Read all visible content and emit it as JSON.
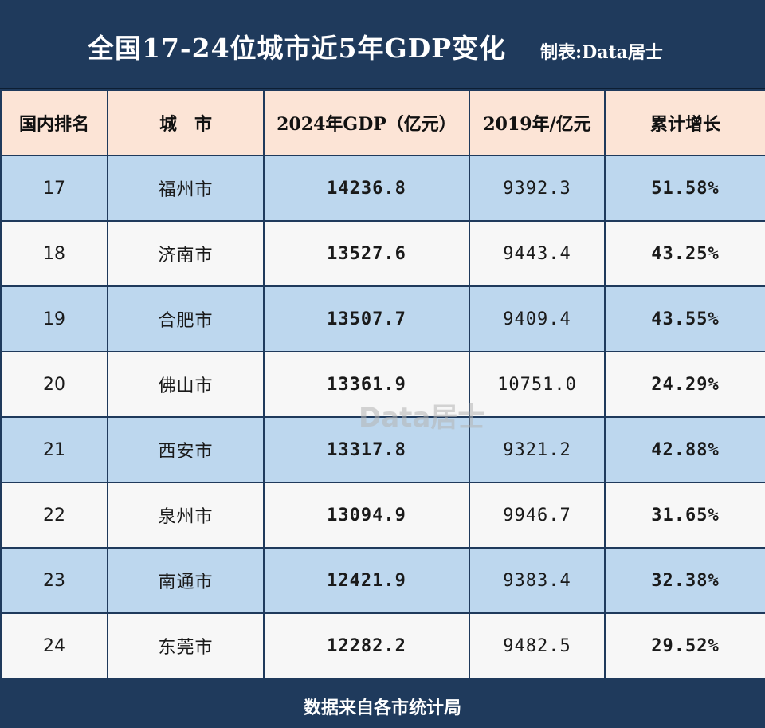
{
  "header": {
    "title": "全国17-24位城市近5年GDP变化",
    "credit": "制表:Data居士"
  },
  "table": {
    "columns": [
      "国内排名",
      "城　市",
      "2024年GDP（亿元）",
      "2019年/亿元",
      "累计增长"
    ],
    "rows": [
      {
        "rank": "17",
        "city": "福州市",
        "gdp2024": "14236.8",
        "gdp2019": "9392.3",
        "growth": "51.58%"
      },
      {
        "rank": "18",
        "city": "济南市",
        "gdp2024": "13527.6",
        "gdp2019": "9443.4",
        "growth": "43.25%"
      },
      {
        "rank": "19",
        "city": "合肥市",
        "gdp2024": "13507.7",
        "gdp2019": "9409.4",
        "growth": "43.55%"
      },
      {
        "rank": "20",
        "city": "佛山市",
        "gdp2024": "13361.9",
        "gdp2019": "10751.0",
        "growth": "24.29%"
      },
      {
        "rank": "21",
        "city": "西安市",
        "gdp2024": "13317.8",
        "gdp2019": "9321.2",
        "growth": "42.88%"
      },
      {
        "rank": "22",
        "city": "泉州市",
        "gdp2024": "13094.9",
        "gdp2019": "9946.7",
        "growth": "31.65%"
      },
      {
        "rank": "23",
        "city": "南通市",
        "gdp2024": "12421.9",
        "gdp2019": "9383.4",
        "growth": "32.38%"
      },
      {
        "rank": "24",
        "city": "东莞市",
        "gdp2024": "12282.2",
        "gdp2019": "9482.5",
        "growth": "29.52%"
      }
    ]
  },
  "footer": {
    "source": "数据来自各市统计局"
  },
  "watermark": "Data居士",
  "colors": {
    "navy": "#1f3a5c",
    "header_cell": "#fce4d6",
    "row_blue": "#bdd7ee",
    "row_white": "#f7f7f7"
  }
}
